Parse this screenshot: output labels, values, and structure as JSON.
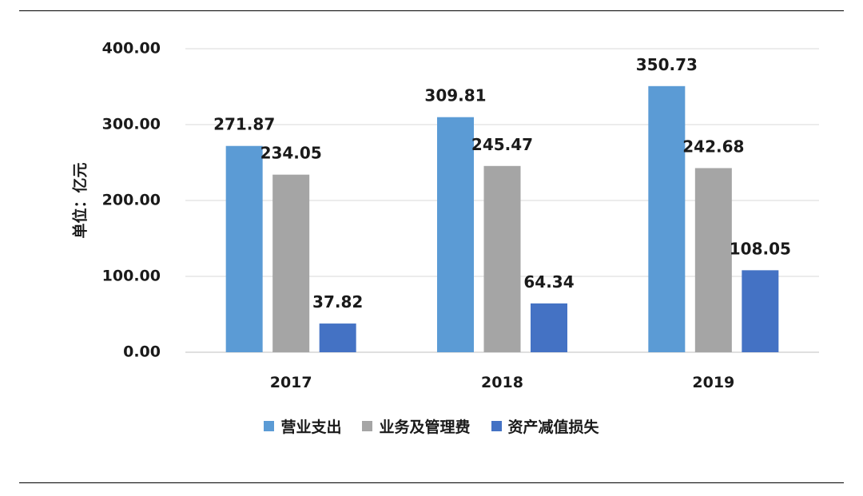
{
  "chart_data": {
    "type": "bar",
    "categories": [
      "2017",
      "2018",
      "2019"
    ],
    "series": [
      {
        "name": "营业支出",
        "values": [
          271.87,
          309.81,
          350.73
        ],
        "color": "#5B9BD5"
      },
      {
        "name": "业务及管理费",
        "values": [
          234.05,
          245.47,
          242.68
        ],
        "color": "#A5A5A5"
      },
      {
        "name": "资产减值损失",
        "values": [
          37.82,
          64.34,
          108.05
        ],
        "color": "#4472C4"
      }
    ],
    "ylabel": "单位：亿元",
    "ylim": [
      0,
      400
    ],
    "yticks": [
      "0.00",
      "100.00",
      "200.00",
      "300.00",
      "400.00"
    ],
    "data_labels": [
      [
        "271.87",
        "309.81",
        "350.73"
      ],
      [
        "234.05",
        "245.47",
        "242.68"
      ],
      [
        "37.82",
        "64.34",
        "108.05"
      ]
    ],
    "grid": true,
    "legend_position": "bottom"
  }
}
